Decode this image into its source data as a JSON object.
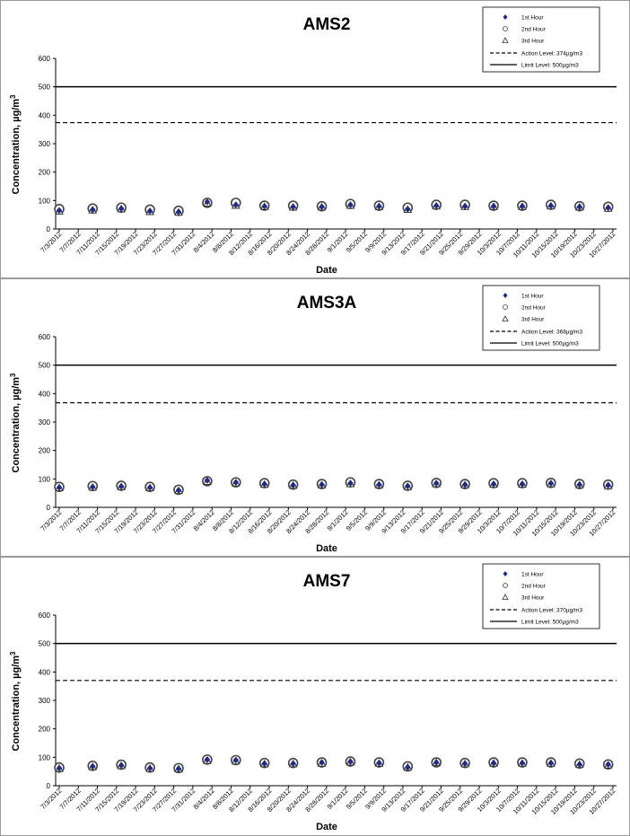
{
  "chart_data": [
    {
      "type": "scatter",
      "title": "AMS2",
      "xlabel": "Date",
      "ylabel": "Concentration,  µg/m",
      "ylabel_sup": "3",
      "ylim": [
        0,
        600
      ],
      "yticks": [
        "0",
        "100",
        "200",
        "300",
        "400",
        "500",
        "600"
      ],
      "x": [
        "7/3/2012",
        "7/7/2012",
        "7/11/2012",
        "7/15/2012",
        "7/19/2012",
        "7/23/2012",
        "7/27/2012",
        "7/31/2012",
        "8/4/2012",
        "8/8/2012",
        "8/12/2012",
        "8/16/2012",
        "8/20/2012",
        "8/24/2012",
        "8/28/2012",
        "9/1/2012",
        "9/5/2012",
        "9/9/2012",
        "9/13/2012",
        "9/17/2012",
        "9/21/2012",
        "9/25/2012",
        "9/29/2012",
        "10/3/2012",
        "10/7/2012",
        "10/11/2012",
        "10/15/2012",
        "10/19/2012",
        "10/23/2012",
        "10/27/2012"
      ],
      "point_dates": [
        "7/3/2012",
        "7/10/2012",
        "7/16/2012",
        "7/22/2012",
        "7/28/2012",
        "8/3/2012",
        "8/9/2012",
        "8/15/2012",
        "8/21/2012",
        "8/27/2012",
        "9/2/2012",
        "9/8/2012",
        "9/14/2012",
        "9/20/2012",
        "9/26/2012",
        "10/2/2012",
        "10/8/2012",
        "10/14/2012",
        "10/20/2012",
        "10/26/2012"
      ],
      "series": [
        {
          "name": "1st Hour",
          "values": [
            65,
            68,
            72,
            63,
            60,
            95,
            85,
            80,
            78,
            78,
            85,
            80,
            70,
            82,
            80,
            80,
            80,
            82,
            78,
            75
          ]
        },
        {
          "name": "2nd Hour",
          "values": [
            70,
            72,
            75,
            68,
            64,
            92,
            92,
            82,
            82,
            80,
            88,
            82,
            75,
            85,
            85,
            82,
            82,
            85,
            80,
            78
          ]
        },
        {
          "name": "3rd Hour",
          "values": [
            62,
            66,
            70,
            60,
            58,
            90,
            82,
            78,
            76,
            76,
            82,
            78,
            68,
            80,
            78,
            78,
            78,
            80,
            76,
            72
          ]
        }
      ],
      "action_level": 374,
      "limit_level": 500,
      "legend": {
        "first": "1st Hour",
        "second": "2nd Hour",
        "third": "3rd Hour",
        "action": "Action Level: 374µg/m3",
        "limit": "Limit Level: 500µg/m3",
        "placement": "top-right"
      },
      "grid": false
    },
    {
      "type": "scatter",
      "title": "AMS3A",
      "xlabel": "Date",
      "ylabel": "Concentration,  µg/m",
      "ylabel_sup": "3",
      "ylim": [
        0,
        600
      ],
      "yticks": [
        "0",
        "100",
        "200",
        "300",
        "400",
        "500",
        "600"
      ],
      "x": [
        "7/3/2012",
        "7/7/2012",
        "7/11/2012",
        "7/15/2012",
        "7/19/2012",
        "7/23/2012",
        "7/27/2012",
        "7/31/2012",
        "8/4/2012",
        "8/8/2012",
        "8/12/2012",
        "8/16/2012",
        "8/20/2012",
        "8/24/2012",
        "8/28/2012",
        "9/1/2012",
        "9/5/2012",
        "9/9/2012",
        "9/13/2012",
        "9/17/2012",
        "9/21/2012",
        "9/25/2012",
        "9/29/2012",
        "10/3/2012",
        "10/7/2012",
        "10/11/2012",
        "10/15/2012",
        "10/19/2012",
        "10/23/2012",
        "10/27/2012"
      ],
      "point_dates": [
        "7/3/2012",
        "7/10/2012",
        "7/16/2012",
        "7/22/2012",
        "7/28/2012",
        "8/3/2012",
        "8/9/2012",
        "8/15/2012",
        "8/21/2012",
        "8/27/2012",
        "9/2/2012",
        "9/8/2012",
        "9/14/2012",
        "9/20/2012",
        "9/26/2012",
        "10/2/2012",
        "10/8/2012",
        "10/14/2012",
        "10/20/2012",
        "10/26/2012"
      ],
      "series": [
        {
          "name": "1st Hour",
          "values": [
            70,
            72,
            74,
            70,
            60,
            95,
            88,
            82,
            78,
            80,
            85,
            80,
            75,
            85,
            80,
            82,
            82,
            85,
            80,
            78
          ]
        },
        {
          "name": "2nd Hour",
          "values": [
            72,
            75,
            76,
            72,
            62,
            92,
            88,
            85,
            80,
            82,
            88,
            82,
            76,
            86,
            82,
            85,
            85,
            86,
            82,
            80
          ]
        },
        {
          "name": "3rd Hour",
          "values": [
            68,
            70,
            72,
            68,
            58,
            90,
            85,
            80,
            76,
            78,
            82,
            78,
            72,
            82,
            78,
            80,
            80,
            82,
            78,
            75
          ]
        }
      ],
      "action_level": 368,
      "limit_level": 500,
      "legend": {
        "first": "1st Hour",
        "second": "2nd Hour",
        "third": "3rd Hour",
        "action": "Action Level: 368µg/m3",
        "limit": "Limit Level: 500µg/m3",
        "placement": "top-right"
      },
      "grid": false
    },
    {
      "type": "scatter",
      "title": "AMS7",
      "xlabel": "Date",
      "ylabel": "Concentration,  µg/m",
      "ylabel_sup": "3",
      "ylim": [
        0,
        600
      ],
      "yticks": [
        "0",
        "100",
        "200",
        "300",
        "400",
        "500",
        "600"
      ],
      "x": [
        "7/3/2012",
        "7/7/2012",
        "7/11/2012",
        "7/15/2012",
        "7/19/2012",
        "7/23/2012",
        "7/27/2012",
        "7/31/2012",
        "8/4/2012",
        "8/8/2012",
        "8/12/2012",
        "8/16/2012",
        "8/20/2012",
        "8/24/2012",
        "8/28/2012",
        "9/1/2012",
        "9/5/2012",
        "9/9/2012",
        "9/13/2012",
        "9/17/2012",
        "9/21/2012",
        "9/25/2012",
        "9/29/2012",
        "10/3/2012",
        "10/7/2012",
        "10/11/2012",
        "10/15/2012",
        "10/19/2012",
        "10/23/2012",
        "10/27/2012"
      ],
      "point_dates": [
        "7/3/2012",
        "7/10/2012",
        "7/16/2012",
        "7/22/2012",
        "7/28/2012",
        "8/3/2012",
        "8/9/2012",
        "8/15/2012",
        "8/21/2012",
        "8/27/2012",
        "9/2/2012",
        "9/8/2012",
        "9/14/2012",
        "9/20/2012",
        "9/26/2012",
        "10/2/2012",
        "10/8/2012",
        "10/14/2012",
        "10/20/2012",
        "10/26/2012"
      ],
      "series": [
        {
          "name": "1st Hour",
          "values": [
            62,
            68,
            72,
            62,
            60,
            92,
            90,
            78,
            78,
            82,
            85,
            80,
            65,
            82,
            78,
            80,
            80,
            80,
            75,
            75
          ]
        },
        {
          "name": "2nd Hour",
          "values": [
            64,
            70,
            74,
            64,
            62,
            92,
            90,
            80,
            80,
            82,
            85,
            82,
            68,
            82,
            80,
            82,
            82,
            82,
            78,
            75
          ]
        },
        {
          "name": "3rd Hour",
          "values": [
            60,
            66,
            70,
            60,
            58,
            88,
            86,
            76,
            76,
            78,
            82,
            78,
            64,
            80,
            76,
            78,
            78,
            78,
            74,
            72
          ]
        }
      ],
      "action_level": 370,
      "limit_level": 500,
      "legend": {
        "first": "1st Hour",
        "second": "2nd Hour",
        "third": "3rd Hour",
        "action": "Action Level: 370µg/m3",
        "limit": "Limit Level: 500µg/m3",
        "placement": "top-right"
      },
      "grid": false
    }
  ],
  "colors": {
    "marker_fill": "#1f2a8c",
    "circle": "#444444",
    "triangle": "#333333",
    "line": "#000000"
  }
}
